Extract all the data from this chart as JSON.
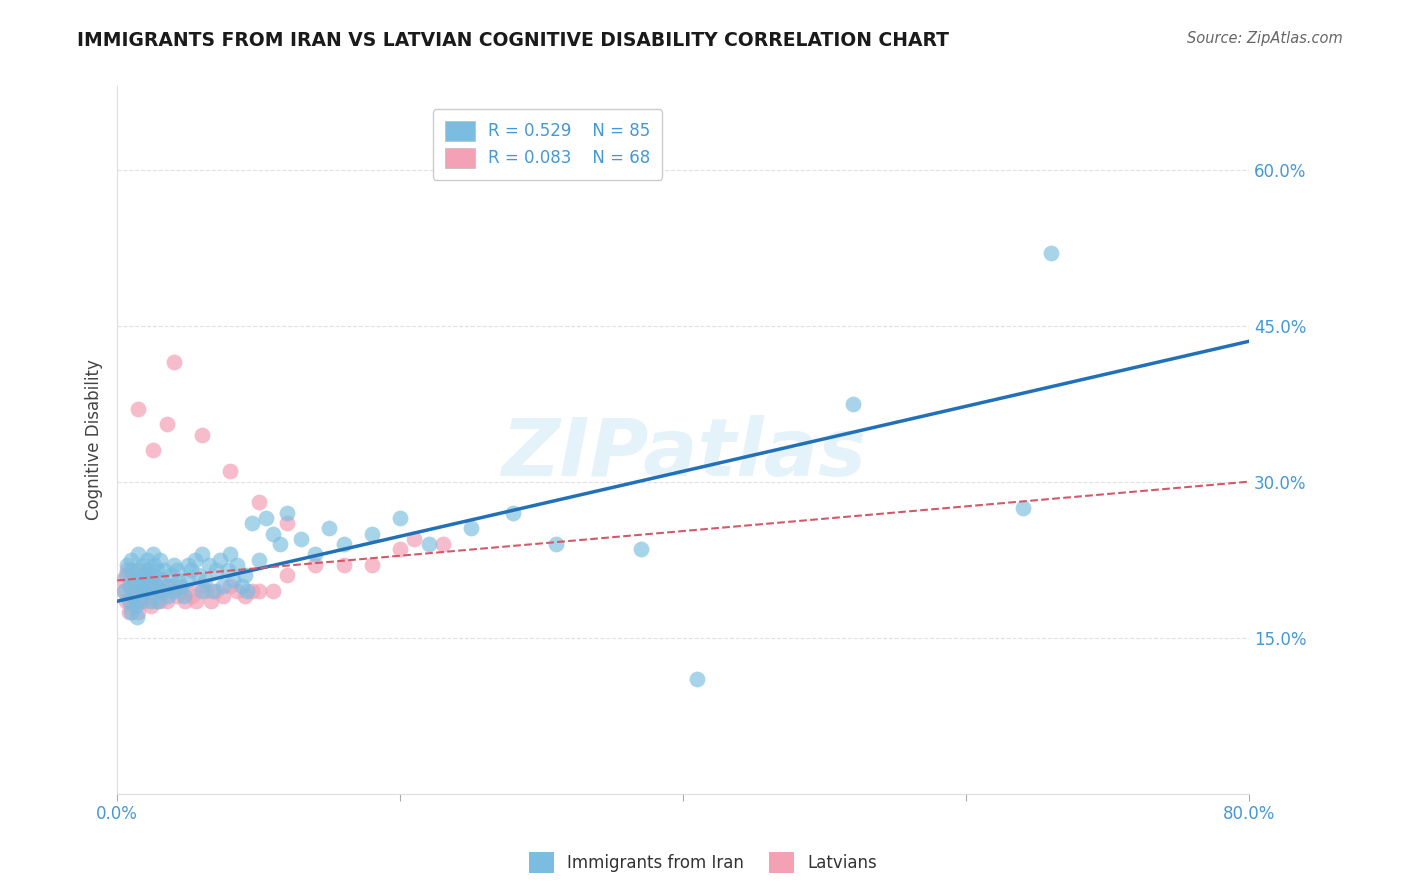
{
  "title": "IMMIGRANTS FROM IRAN VS LATVIAN COGNITIVE DISABILITY CORRELATION CHART",
  "source": "Source: ZipAtlas.com",
  "ylabel": "Cognitive Disability",
  "watermark": "ZIPatlas",
  "legend_blue_r": "R = 0.529",
  "legend_blue_n": "N = 85",
  "legend_pink_r": "R = 0.083",
  "legend_pink_n": "N = 68",
  "legend_blue_label": "Immigrants from Iran",
  "legend_pink_label": "Latvians",
  "xlim": [
    0.0,
    0.8
  ],
  "ylim": [
    0.0,
    0.68
  ],
  "xticks": [
    0.0,
    0.2,
    0.4,
    0.6,
    0.8
  ],
  "yticks": [
    0.15,
    0.3,
    0.45,
    0.6
  ],
  "ytick_labels": [
    "15.0%",
    "30.0%",
    "45.0%",
    "60.0%"
  ],
  "xtick_labels": [
    "0.0%",
    "",
    "",
    "",
    "80.0%"
  ],
  "blue_color": "#7abde0",
  "pink_color": "#f4a0b5",
  "trend_blue_color": "#2271b8",
  "trend_pink_color": "#d45868",
  "axis_color": "#4499d4",
  "title_color": "#1a1a1a",
  "background_color": "#ffffff",
  "grid_color": "#cccccc",
  "blue_scatter_x": [
    0.005,
    0.006,
    0.007,
    0.008,
    0.009,
    0.01,
    0.01,
    0.01,
    0.011,
    0.012,
    0.013,
    0.014,
    0.015,
    0.015,
    0.016,
    0.017,
    0.018,
    0.018,
    0.019,
    0.02,
    0.02,
    0.021,
    0.022,
    0.023,
    0.024,
    0.025,
    0.025,
    0.026,
    0.027,
    0.028,
    0.029,
    0.03,
    0.03,
    0.032,
    0.033,
    0.035,
    0.036,
    0.038,
    0.04,
    0.04,
    0.042,
    0.043,
    0.045,
    0.047,
    0.05,
    0.05,
    0.052,
    0.055,
    0.057,
    0.06,
    0.06,
    0.062,
    0.065,
    0.068,
    0.07,
    0.073,
    0.075,
    0.078,
    0.08,
    0.082,
    0.085,
    0.088,
    0.09,
    0.092,
    0.095,
    0.1,
    0.105,
    0.11,
    0.115,
    0.12,
    0.13,
    0.14,
    0.15,
    0.16,
    0.18,
    0.2,
    0.22,
    0.25,
    0.28,
    0.31,
    0.37,
    0.41,
    0.52,
    0.64,
    0.66
  ],
  "blue_scatter_y": [
    0.195,
    0.21,
    0.22,
    0.185,
    0.2,
    0.215,
    0.225,
    0.175,
    0.19,
    0.205,
    0.18,
    0.17,
    0.215,
    0.23,
    0.2,
    0.185,
    0.195,
    0.22,
    0.21,
    0.195,
    0.205,
    0.225,
    0.215,
    0.2,
    0.185,
    0.21,
    0.23,
    0.22,
    0.2,
    0.215,
    0.185,
    0.195,
    0.225,
    0.205,
    0.215,
    0.2,
    0.19,
    0.21,
    0.22,
    0.195,
    0.215,
    0.205,
    0.2,
    0.19,
    0.22,
    0.205,
    0.215,
    0.225,
    0.21,
    0.195,
    0.23,
    0.205,
    0.22,
    0.195,
    0.215,
    0.225,
    0.2,
    0.215,
    0.23,
    0.205,
    0.22,
    0.2,
    0.21,
    0.195,
    0.26,
    0.225,
    0.265,
    0.25,
    0.24,
    0.27,
    0.245,
    0.23,
    0.255,
    0.24,
    0.25,
    0.265,
    0.24,
    0.255,
    0.27,
    0.24,
    0.235,
    0.11,
    0.375,
    0.275,
    0.52
  ],
  "pink_scatter_x": [
    0.004,
    0.005,
    0.006,
    0.007,
    0.008,
    0.008,
    0.009,
    0.01,
    0.01,
    0.011,
    0.012,
    0.013,
    0.014,
    0.015,
    0.015,
    0.016,
    0.017,
    0.018,
    0.019,
    0.02,
    0.02,
    0.021,
    0.022,
    0.023,
    0.024,
    0.025,
    0.026,
    0.027,
    0.028,
    0.03,
    0.03,
    0.032,
    0.034,
    0.035,
    0.037,
    0.04,
    0.042,
    0.045,
    0.048,
    0.05,
    0.053,
    0.056,
    0.06,
    0.063,
    0.066,
    0.07,
    0.075,
    0.08,
    0.085,
    0.09,
    0.095,
    0.1,
    0.11,
    0.12,
    0.14,
    0.16,
    0.18,
    0.2,
    0.21,
    0.23,
    0.04,
    0.06,
    0.08,
    0.1,
    0.12,
    0.025,
    0.035,
    0.015
  ],
  "pink_scatter_y": [
    0.205,
    0.195,
    0.185,
    0.215,
    0.2,
    0.175,
    0.19,
    0.21,
    0.18,
    0.2,
    0.195,
    0.185,
    0.205,
    0.215,
    0.175,
    0.195,
    0.185,
    0.2,
    0.21,
    0.195,
    0.185,
    0.205,
    0.215,
    0.195,
    0.18,
    0.205,
    0.195,
    0.185,
    0.2,
    0.195,
    0.185,
    0.2,
    0.195,
    0.185,
    0.195,
    0.2,
    0.19,
    0.195,
    0.185,
    0.195,
    0.19,
    0.185,
    0.2,
    0.195,
    0.185,
    0.195,
    0.19,
    0.2,
    0.195,
    0.19,
    0.195,
    0.195,
    0.195,
    0.21,
    0.22,
    0.22,
    0.22,
    0.235,
    0.245,
    0.24,
    0.415,
    0.345,
    0.31,
    0.28,
    0.26,
    0.33,
    0.355,
    0.37
  ],
  "blue_trend_x": [
    0.0,
    0.8
  ],
  "blue_trend_y": [
    0.185,
    0.435
  ],
  "pink_trend_x": [
    0.0,
    0.8
  ],
  "pink_trend_y": [
    0.205,
    0.3
  ]
}
